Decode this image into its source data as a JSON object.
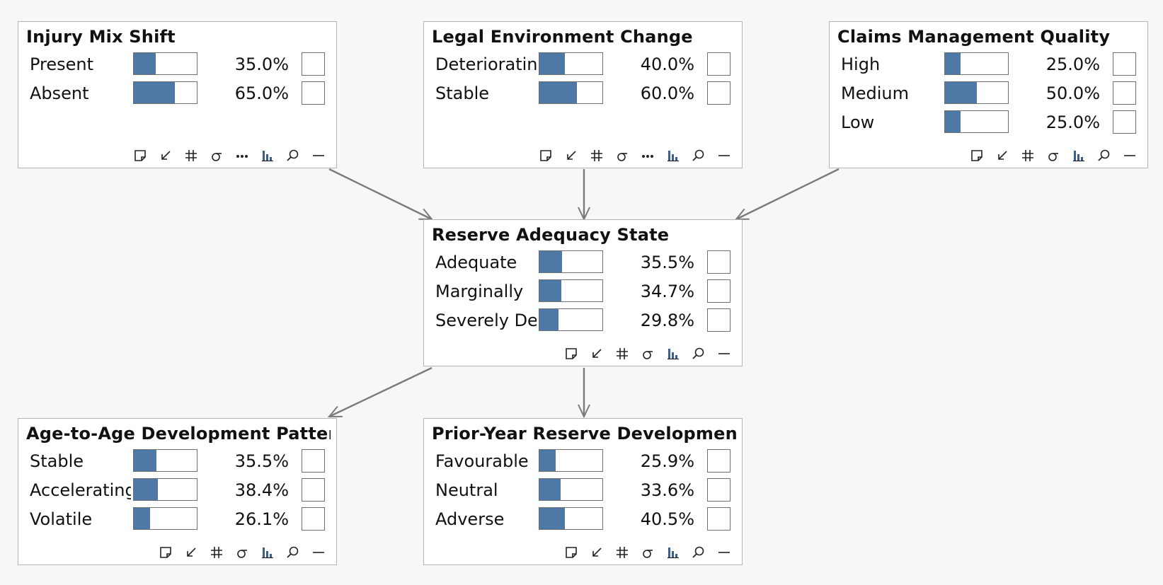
{
  "colors": {
    "bar_fill": "#4e79a7",
    "edge": "#7a7a7a",
    "node_border": "#b4b4b4"
  },
  "nodes": {
    "injury": {
      "title": "Injury Mix Shift",
      "states": [
        {
          "label": "Present",
          "pct_text": "35.0%",
          "value": 0.35
        },
        {
          "label": "Absent",
          "pct_text": "65.0%",
          "value": 0.65
        }
      ],
      "tools": [
        "note-icon",
        "arrow-in-icon",
        "hash-icon",
        "sigma-icon",
        "more-icon",
        "bar-chart-icon",
        "zoom-icon",
        "minimize-icon"
      ]
    },
    "legal": {
      "title": "Legal Environment Change",
      "states": [
        {
          "label": "Deteriorating",
          "pct_text": "40.0%",
          "value": 0.4
        },
        {
          "label": "Stable",
          "pct_text": "60.0%",
          "value": 0.6
        }
      ],
      "tools": [
        "note-icon",
        "arrow-in-icon",
        "hash-icon",
        "sigma-icon",
        "more-icon",
        "bar-chart-icon",
        "zoom-icon",
        "minimize-icon"
      ]
    },
    "claims": {
      "title": "Claims Management Quality",
      "states": [
        {
          "label": "High",
          "pct_text": "25.0%",
          "value": 0.25
        },
        {
          "label": "Medium",
          "pct_text": "50.0%",
          "value": 0.5
        },
        {
          "label": "Low",
          "pct_text": "25.0%",
          "value": 0.25
        }
      ],
      "tools": [
        "note-icon",
        "arrow-in-icon",
        "hash-icon",
        "sigma-icon",
        "bar-chart-icon",
        "zoom-icon",
        "minimize-icon"
      ]
    },
    "reserve": {
      "title": "Reserve Adequacy State",
      "states": [
        {
          "label": "Adequate",
          "pct_text": "35.5%",
          "value": 0.355
        },
        {
          "label": "Marginally",
          "pct_text": "34.7%",
          "value": 0.347
        },
        {
          "label": "Severely Deficient",
          "pct_text": "29.8%",
          "value": 0.298
        }
      ],
      "tools": [
        "note-icon",
        "arrow-in-icon",
        "hash-icon",
        "sigma-icon",
        "bar-chart-icon",
        "zoom-icon",
        "minimize-icon"
      ]
    },
    "age": {
      "title": "Age-to-Age Development Pattern",
      "states": [
        {
          "label": "Stable",
          "pct_text": "35.5%",
          "value": 0.355
        },
        {
          "label": "Accelerating",
          "pct_text": "38.4%",
          "value": 0.384
        },
        {
          "label": "Volatile",
          "pct_text": "26.1%",
          "value": 0.261
        }
      ],
      "tools": [
        "note-icon",
        "arrow-in-icon",
        "hash-icon",
        "sigma-icon",
        "bar-chart-icon",
        "zoom-icon",
        "minimize-icon"
      ]
    },
    "prior": {
      "title": "Prior-Year Reserve Development",
      "states": [
        {
          "label": "Favourable",
          "pct_text": "25.9%",
          "value": 0.259
        },
        {
          "label": "Neutral",
          "pct_text": "33.6%",
          "value": 0.336
        },
        {
          "label": "Adverse",
          "pct_text": "40.5%",
          "value": 0.405
        }
      ],
      "tools": [
        "note-icon",
        "arrow-in-icon",
        "hash-icon",
        "sigma-icon",
        "bar-chart-icon",
        "zoom-icon",
        "minimize-icon"
      ]
    }
  },
  "edges": [
    {
      "from": "injury",
      "to": "reserve"
    },
    {
      "from": "legal",
      "to": "reserve"
    },
    {
      "from": "claims",
      "to": "reserve"
    },
    {
      "from": "reserve",
      "to": "age"
    },
    {
      "from": "reserve",
      "to": "prior"
    }
  ]
}
